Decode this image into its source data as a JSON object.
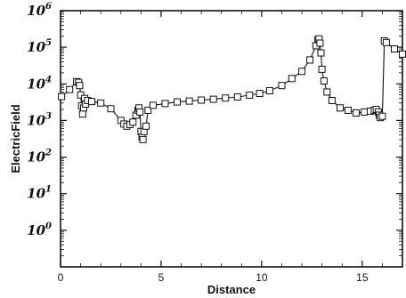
{
  "chart_data": {
    "type": "line",
    "xlabel": "Distance",
    "ylabel": "ElectricField",
    "xlim": [
      0,
      17
    ],
    "ylim_log10": [
      -1,
      6
    ],
    "yscale": "log",
    "grid": false,
    "legend": "none",
    "marker": "square",
    "line_color": "#111111",
    "x_ticks": [
      {
        "value": 0,
        "label": "0"
      },
      {
        "value": 5,
        "label": "5"
      },
      {
        "value": 10,
        "label": "10"
      },
      {
        "value": 15,
        "label": "15"
      }
    ],
    "y_ticks": [
      {
        "exp": 0,
        "base": "10",
        "sup": "0"
      },
      {
        "exp": 1,
        "base": "10",
        "sup": "1"
      },
      {
        "exp": 2,
        "base": "10",
        "sup": "2"
      },
      {
        "exp": 3,
        "base": "10",
        "sup": "3"
      },
      {
        "exp": 4,
        "base": "10",
        "sup": "4"
      },
      {
        "exp": 5,
        "base": "10",
        "sup": "5"
      },
      {
        "exp": 6,
        "base": "10",
        "sup": "6"
      }
    ],
    "series": [
      {
        "x": [
          0.05,
          0.45,
          0.8,
          0.9,
          0.95,
          1.0,
          1.05,
          1.1,
          1.15,
          1.2,
          1.25,
          1.35,
          1.55,
          2.0,
          2.5,
          3.0,
          3.15,
          3.3,
          3.45,
          3.6,
          3.75,
          3.85,
          3.9,
          3.95,
          4.0,
          4.05,
          4.1,
          4.15,
          4.25,
          4.35,
          4.6,
          5.2,
          5.8,
          6.4,
          7.0,
          7.6,
          8.2,
          8.8,
          9.4,
          9.9,
          10.4,
          11.0,
          11.5,
          12.0,
          12.4,
          12.7,
          12.8,
          12.85,
          12.9,
          12.95,
          13.0,
          13.1,
          13.25,
          13.5,
          13.9,
          14.3,
          14.7,
          15.1,
          15.4,
          15.6,
          15.7,
          15.8,
          15.85,
          15.9,
          16.0,
          16.1,
          16.2,
          16.6,
          17.0
        ],
        "y": [
          4500,
          7000,
          11500,
          11000,
          9000,
          5000,
          2500,
          1500,
          2200,
          4000,
          2800,
          3500,
          3300,
          3000,
          2100,
          1000,
          800,
          700,
          780,
          900,
          1400,
          1900,
          2200,
          1700,
          500,
          350,
          300,
          500,
          700,
          1900,
          2600,
          2900,
          3200,
          3400,
          3600,
          3800,
          4100,
          4400,
          4900,
          5500,
          6500,
          9000,
          14000,
          22000,
          45000,
          110000,
          160000,
          170000,
          130000,
          70000,
          25000,
          12000,
          6000,
          3500,
          2200,
          1900,
          1600,
          1700,
          1800,
          1900,
          2000,
          1700,
          1400,
          1200,
          1300,
          150000,
          135000,
          90000,
          65000
        ]
      }
    ]
  }
}
